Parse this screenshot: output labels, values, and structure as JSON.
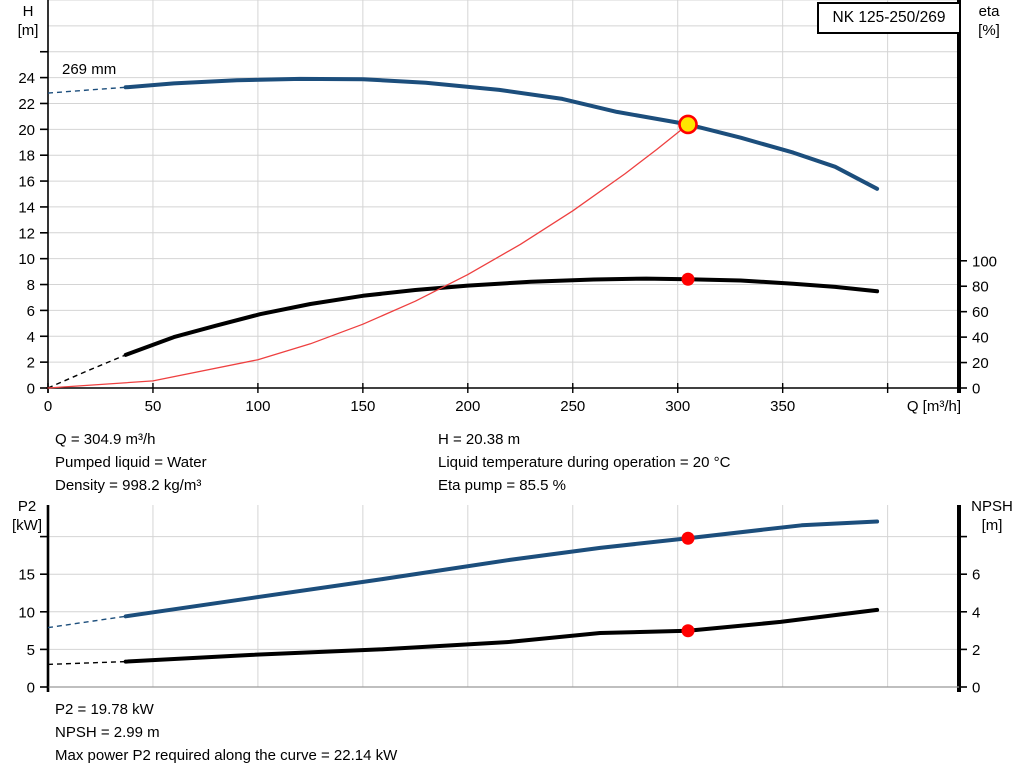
{
  "labels": {
    "impeller": "269 mm",
    "q_axis": "Q [m³/h]"
  },
  "info_top": {
    "left": [
      "Q = 304.9 m³/h",
      "Pumped liquid = Water",
      "Density = 998.2 kg/m³"
    ],
    "right": [
      "H = 20.38 m",
      "Liquid temperature during operation = 20 °C",
      "Eta pump = 85.5 %"
    ]
  },
  "info_bottom": [
    "P2 = 19.78 kW",
    "NPSH = 2.99 m",
    "Max power P2 required along the curve = 22.14 kW"
  ],
  "colors": {
    "blue": "#1c4e7c",
    "black": "#000000",
    "red": "#ff0000",
    "red_line": "#ee4040",
    "yellow": "#ffe600",
    "grid": "#d4d4d4",
    "axis_gray": "#999999"
  },
  "chart_data": [
    {
      "type": "line",
      "title": "NK 125-250/269",
      "xlabel": "Q [m³/h]",
      "x_range": [
        0,
        434
      ],
      "x_ticks": [
        0,
        50,
        100,
        150,
        200,
        250,
        300,
        350
      ],
      "x_extra_ticks": [
        400
      ],
      "x_grid": [
        50,
        100,
        150,
        200,
        250,
        300,
        350,
        400
      ],
      "left_axis": {
        "label": "H",
        "unit": "[m]",
        "range": [
          0,
          30
        ],
        "ticks": [
          0,
          2,
          4,
          6,
          8,
          10,
          12,
          14,
          16,
          18,
          20,
          22,
          24
        ],
        "extra_ticks": [
          26
        ],
        "grid_values": [
          2,
          4,
          6,
          8,
          10,
          12,
          14,
          16,
          18,
          20,
          22,
          24,
          26,
          28,
          30
        ]
      },
      "right_axis": {
        "label": "eta",
        "unit": "[%]",
        "range": [
          0,
          305
        ],
        "ticks": [
          0,
          20,
          40,
          60,
          80,
          100
        ],
        "extra_ticks": []
      },
      "series": [
        {
          "name": "qh-curve-269mm",
          "axis": "left",
          "color_key": "blue",
          "width": 4,
          "dash_until": 37,
          "points": [
            [
              0,
              22.8
            ],
            [
              20,
              23.05
            ],
            [
              37,
              23.25
            ],
            [
              60,
              23.55
            ],
            [
              90,
              23.8
            ],
            [
              120,
              23.9
            ],
            [
              150,
              23.88
            ],
            [
              180,
              23.6
            ],
            [
              215,
              23.05
            ],
            [
              245,
              22.35
            ],
            [
              271,
              21.35
            ],
            [
              304.9,
              20.38
            ],
            [
              330,
              19.35
            ],
            [
              355,
              18.2
            ],
            [
              375,
              17.1
            ],
            [
              395,
              15.4
            ]
          ]
        },
        {
          "name": "efficiency-curve",
          "axis": "right",
          "color_key": "black",
          "width": 4,
          "dash_until": 37,
          "points": [
            [
              0,
              0
            ],
            [
              18,
              13
            ],
            [
              37,
              26
            ],
            [
              60,
              40
            ],
            [
              80,
              49
            ],
            [
              101,
              58
            ],
            [
              125,
              66
            ],
            [
              150,
              72.5
            ],
            [
              175,
              77
            ],
            [
              200,
              80.5
            ],
            [
              230,
              83.5
            ],
            [
              260,
              85.3
            ],
            [
              285,
              86
            ],
            [
              304.9,
              85.5
            ],
            [
              330,
              84.5
            ],
            [
              355,
              82
            ],
            [
              375,
              79.5
            ],
            [
              395,
              76
            ]
          ]
        },
        {
          "name": "affinity-curve-to-duty-point",
          "axis": "left",
          "color_key": "red_line",
          "width": 1.3,
          "dash_until": 0,
          "points": [
            [
              0,
              0
            ],
            [
              50,
              0.55
            ],
            [
              100,
              2.19
            ],
            [
              125,
              3.42
            ],
            [
              150,
              4.93
            ],
            [
              175,
              6.71
            ],
            [
              200,
              8.77
            ],
            [
              225,
              11.1
            ],
            [
              250,
              13.7
            ],
            [
              275,
              16.58
            ],
            [
              290,
              18.44
            ],
            [
              304.9,
              20.38
            ]
          ]
        }
      ],
      "duty_points": [
        {
          "q": 304.9,
          "value": 20.38,
          "axis": "left",
          "marker": "duty",
          "r": 8.5
        },
        {
          "q": 304.9,
          "value": 85.5,
          "axis": "right",
          "marker": "dot",
          "r": 6.5
        }
      ]
    },
    {
      "type": "line",
      "title": "",
      "xlabel": "",
      "x_range": [
        0,
        434
      ],
      "x_ticks": [],
      "x_extra_ticks": [
        0
      ],
      "x_grid": [
        50,
        100,
        150,
        200,
        250,
        300,
        350,
        400
      ],
      "left_axis": {
        "label": "P2",
        "unit": "[kW]",
        "range": [
          0,
          24.2
        ],
        "ticks": [
          0,
          5,
          10,
          15
        ],
        "extra_ticks": [
          20
        ],
        "grid_values": [
          5,
          10,
          15,
          20
        ]
      },
      "right_axis": {
        "label": "NPSH",
        "unit": "[m]",
        "range": [
          0,
          9.68
        ],
        "ticks": [
          0,
          2,
          4,
          6
        ],
        "extra_ticks": [
          8
        ]
      },
      "series": [
        {
          "name": "p2-curve",
          "axis": "left",
          "color_key": "blue",
          "width": 4,
          "dash_until": 37,
          "points": [
            [
              0,
              7.9
            ],
            [
              37,
              9.4
            ],
            [
              96,
              11.8
            ],
            [
              158,
              14.3
            ],
            [
              220,
              16.9
            ],
            [
              263,
              18.5
            ],
            [
              304.9,
              19.78
            ],
            [
              359,
              21.5
            ],
            [
              395,
              22.0
            ]
          ]
        },
        {
          "name": "npsh-curve",
          "axis": "right",
          "color_key": "black",
          "width": 4,
          "dash_until": 37,
          "points": [
            [
              0,
              1.2
            ],
            [
              37,
              1.35
            ],
            [
              96,
              1.7
            ],
            [
              158,
              2.0
            ],
            [
              220,
              2.4
            ],
            [
              263,
              2.87
            ],
            [
              304.9,
              2.99
            ],
            [
              349,
              3.46
            ],
            [
              395,
              4.1
            ]
          ]
        }
      ],
      "duty_points": [
        {
          "q": 304.9,
          "value": 19.78,
          "axis": "left",
          "marker": "dot",
          "r": 6.5
        },
        {
          "q": 304.9,
          "value": 2.99,
          "axis": "right",
          "marker": "dot",
          "r": 6.5
        }
      ]
    }
  ]
}
